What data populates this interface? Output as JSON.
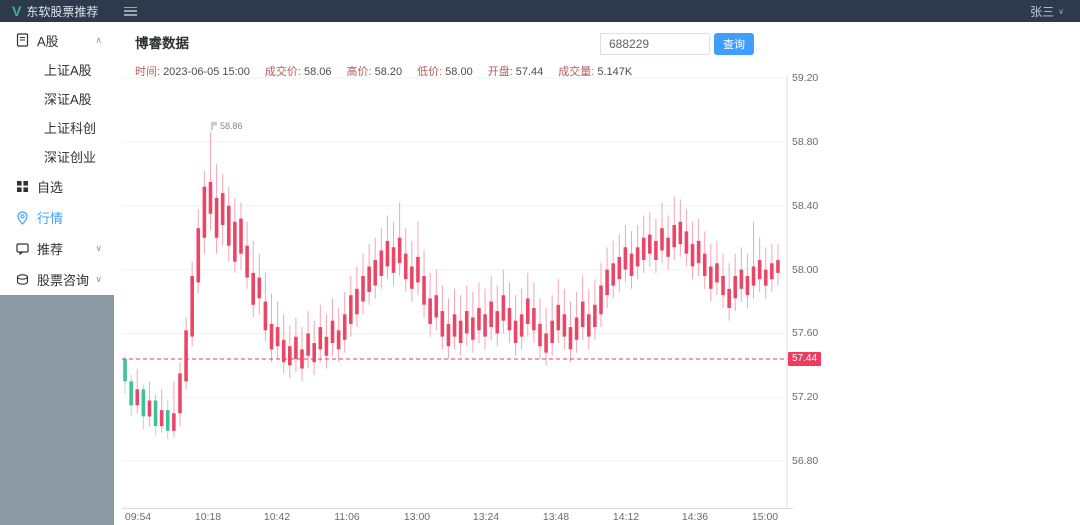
{
  "header": {
    "brand": "东软股票推荐",
    "user": "张三",
    "user_caret": "∨"
  },
  "sidebar": {
    "groups": [
      {
        "label": "A股",
        "icon": "document-icon",
        "chevron": "∧",
        "children": [
          "上证A股",
          "深证A股",
          "上证科创",
          "深证创业"
        ]
      },
      {
        "label": "自选",
        "icon": "grid-icon"
      },
      {
        "label": "行情",
        "icon": "location-icon",
        "active": true
      },
      {
        "label": "推荐",
        "icon": "chat-icon",
        "chevron": "∨"
      },
      {
        "label": "股票咨询",
        "icon": "news-icon",
        "chevron": "∨"
      }
    ]
  },
  "main": {
    "title": "博睿数据",
    "search": {
      "value": "688229",
      "button": "查询"
    },
    "info": [
      {
        "label": "时间:",
        "value": "2023-06-05 15:00"
      },
      {
        "label": "成交价:",
        "value": "58.06"
      },
      {
        "label": "高价:",
        "value": "58.20"
      },
      {
        "label": "低价:",
        "value": "58.00"
      },
      {
        "label": "开盘:",
        "value": "57.44"
      },
      {
        "label": "成交量:",
        "value": "5.147K"
      }
    ]
  },
  "colors": {
    "accent": "#409eff",
    "header_bg": "#2d3a4b",
    "sidebar_fill": "#8b99a3",
    "up": "#e8395c",
    "down": "#2fbf8f",
    "open_line": "#ef3b5f",
    "axis": "#d9dde2",
    "grid": "#f2f3f5",
    "tick_text": "#6b6b6b"
  },
  "chart_data": {
    "type": "candlestick",
    "title": "",
    "x_labels": [
      "09:54",
      "10:18",
      "10:42",
      "11:06",
      "13:00",
      "13:24",
      "13:48",
      "14:12",
      "14:36",
      "15:00"
    ],
    "y_ticks": [
      "59.20",
      "58.80",
      "58.40",
      "58.00",
      "57.60",
      "57.20",
      "56.80"
    ],
    "y_range": [
      56.5,
      59.22
    ],
    "grid": true,
    "legend_position": "none",
    "open_line": {
      "value": 57.44,
      "label": "57.44"
    },
    "max_marker": {
      "value": 58.86,
      "label": "58.86"
    },
    "candles": [
      [
        57.44,
        57.3,
        57.22,
        57.46
      ],
      [
        57.3,
        57.15,
        57.08,
        57.34
      ],
      [
        57.15,
        57.25,
        57.1,
        57.38
      ],
      [
        57.25,
        57.08,
        57.0,
        57.28
      ],
      [
        57.08,
        57.18,
        57.02,
        57.3
      ],
      [
        57.18,
        57.02,
        56.96,
        57.22
      ],
      [
        57.02,
        57.12,
        56.98,
        57.25
      ],
      [
        57.12,
        56.99,
        56.94,
        57.18
      ],
      [
        56.99,
        57.1,
        56.95,
        57.3
      ],
      [
        57.1,
        57.35,
        57.02,
        57.42
      ],
      [
        57.3,
        57.62,
        57.25,
        57.7
      ],
      [
        57.58,
        57.96,
        57.52,
        58.05
      ],
      [
        57.92,
        58.26,
        57.85,
        58.38
      ],
      [
        58.2,
        58.52,
        58.1,
        58.62
      ],
      [
        58.35,
        58.55,
        58.25,
        58.86
      ],
      [
        58.2,
        58.45,
        58.1,
        58.66
      ],
      [
        58.28,
        58.48,
        58.15,
        58.6
      ],
      [
        58.15,
        58.4,
        58.05,
        58.52
      ],
      [
        58.05,
        58.3,
        57.98,
        58.45
      ],
      [
        58.1,
        58.32,
        58.0,
        58.42
      ],
      [
        57.95,
        58.15,
        57.88,
        58.3
      ],
      [
        57.78,
        57.98,
        57.7,
        58.18
      ],
      [
        57.82,
        57.95,
        57.72,
        58.1
      ],
      [
        57.62,
        57.8,
        57.55,
        57.98
      ],
      [
        57.5,
        57.66,
        57.42,
        57.85
      ],
      [
        57.52,
        57.64,
        57.44,
        57.8
      ],
      [
        57.42,
        57.56,
        57.35,
        57.72
      ],
      [
        57.4,
        57.52,
        57.32,
        57.65
      ],
      [
        57.44,
        57.58,
        57.36,
        57.7
      ],
      [
        57.38,
        57.5,
        57.3,
        57.64
      ],
      [
        57.46,
        57.6,
        57.38,
        57.74
      ],
      [
        57.42,
        57.54,
        57.34,
        57.68
      ],
      [
        57.5,
        57.64,
        57.42,
        57.78
      ],
      [
        57.46,
        57.58,
        57.38,
        57.72
      ],
      [
        57.54,
        57.68,
        57.46,
        57.82
      ],
      [
        57.5,
        57.62,
        57.42,
        57.76
      ],
      [
        57.56,
        57.72,
        57.48,
        57.86
      ],
      [
        57.66,
        57.84,
        57.58,
        57.96
      ],
      [
        57.72,
        57.88,
        57.64,
        58.02
      ],
      [
        57.8,
        57.96,
        57.72,
        58.1
      ],
      [
        57.86,
        58.02,
        57.78,
        58.16
      ],
      [
        57.9,
        58.06,
        57.82,
        58.2
      ],
      [
        57.96,
        58.12,
        57.88,
        58.26
      ],
      [
        58.02,
        58.18,
        57.94,
        58.34
      ],
      [
        57.98,
        58.14,
        57.9,
        58.3
      ],
      [
        58.04,
        58.2,
        57.96,
        58.42
      ],
      [
        57.94,
        58.1,
        57.86,
        58.26
      ],
      [
        57.88,
        58.02,
        57.8,
        58.18
      ],
      [
        57.92,
        58.08,
        57.84,
        58.3
      ],
      [
        57.78,
        57.96,
        57.7,
        58.12
      ],
      [
        57.66,
        57.82,
        57.58,
        57.98
      ],
      [
        57.7,
        57.84,
        57.62,
        58.0
      ],
      [
        57.58,
        57.74,
        57.5,
        57.9
      ],
      [
        57.52,
        57.66,
        57.44,
        57.82
      ],
      [
        57.58,
        57.72,
        57.5,
        57.88
      ],
      [
        57.54,
        57.68,
        57.46,
        57.84
      ],
      [
        57.6,
        57.74,
        57.52,
        57.9
      ],
      [
        57.56,
        57.7,
        57.48,
        57.86
      ],
      [
        57.62,
        57.76,
        57.54,
        57.92
      ],
      [
        57.58,
        57.72,
        57.5,
        57.88
      ],
      [
        57.64,
        57.8,
        57.56,
        57.96
      ],
      [
        57.6,
        57.74,
        57.52,
        57.9
      ],
      [
        57.68,
        57.84,
        57.6,
        58.0
      ],
      [
        57.62,
        57.76,
        57.54,
        57.92
      ],
      [
        57.54,
        57.68,
        57.46,
        57.84
      ],
      [
        57.58,
        57.72,
        57.5,
        57.88
      ],
      [
        57.66,
        57.82,
        57.58,
        57.98
      ],
      [
        57.62,
        57.76,
        57.54,
        57.92
      ],
      [
        57.52,
        57.66,
        57.44,
        57.82
      ],
      [
        57.48,
        57.6,
        57.4,
        57.76
      ],
      [
        57.54,
        57.68,
        57.46,
        57.84
      ],
      [
        57.62,
        57.78,
        57.54,
        57.94
      ],
      [
        57.58,
        57.72,
        57.5,
        57.88
      ],
      [
        57.5,
        57.64,
        57.42,
        57.8
      ],
      [
        57.56,
        57.7,
        57.48,
        57.86
      ],
      [
        57.64,
        57.8,
        57.56,
        57.96
      ],
      [
        57.58,
        57.72,
        57.5,
        57.88
      ],
      [
        57.64,
        57.78,
        57.56,
        57.94
      ],
      [
        57.72,
        57.9,
        57.64,
        58.04
      ],
      [
        57.84,
        58.0,
        57.76,
        58.14
      ],
      [
        57.9,
        58.04,
        57.82,
        58.18
      ],
      [
        57.94,
        58.08,
        57.86,
        58.22
      ],
      [
        58.0,
        58.14,
        57.92,
        58.28
      ],
      [
        57.96,
        58.1,
        57.88,
        58.24
      ],
      [
        58.02,
        58.14,
        57.94,
        58.28
      ],
      [
        58.06,
        58.2,
        57.98,
        58.34
      ],
      [
        58.1,
        58.22,
        58.02,
        58.36
      ],
      [
        58.06,
        58.18,
        57.98,
        58.32
      ],
      [
        58.12,
        58.26,
        58.04,
        58.42
      ],
      [
        58.08,
        58.2,
        58.0,
        58.34
      ],
      [
        58.14,
        58.28,
        58.06,
        58.46
      ],
      [
        58.16,
        58.3,
        58.08,
        58.44
      ],
      [
        58.1,
        58.24,
        58.02,
        58.38
      ],
      [
        58.02,
        58.16,
        57.94,
        58.3
      ],
      [
        58.04,
        58.18,
        57.96,
        58.32
      ],
      [
        57.96,
        58.1,
        57.88,
        58.24
      ],
      [
        57.88,
        58.02,
        57.8,
        58.16
      ],
      [
        57.92,
        58.04,
        57.84,
        58.18
      ],
      [
        57.84,
        57.96,
        57.76,
        58.1
      ],
      [
        57.76,
        57.88,
        57.68,
        58.04
      ],
      [
        57.82,
        57.96,
        57.74,
        58.1
      ],
      [
        57.88,
        58.0,
        57.8,
        58.14
      ],
      [
        57.84,
        57.96,
        57.76,
        58.1
      ],
      [
        57.9,
        58.02,
        57.82,
        58.3
      ],
      [
        57.94,
        58.06,
        57.86,
        58.2
      ],
      [
        57.9,
        58.0,
        57.82,
        58.14
      ],
      [
        57.94,
        58.04,
        57.86,
        58.16
      ],
      [
        57.98,
        58.06,
        57.9,
        58.16
      ]
    ]
  }
}
